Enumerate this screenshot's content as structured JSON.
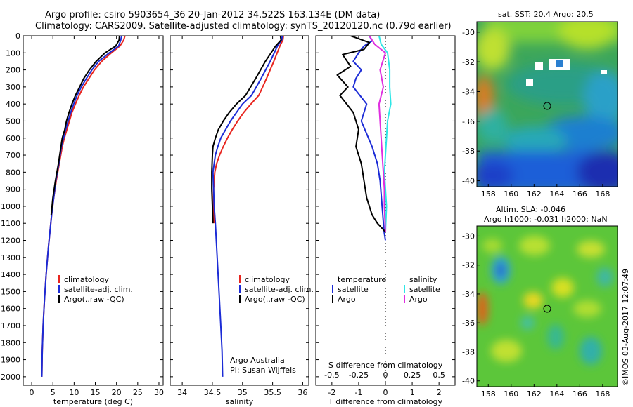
{
  "header": {
    "line1": "Argo profile: csiro 5903654_36 20-Jan-2012 34.522S 163.134E (DM data)",
    "line2": "Climatology: CARS2009. Satellite-adjusted climatology: synTS_20120120.nc (0.79d earlier)"
  },
  "colors": {
    "climatology": "#e8251f",
    "satellite": "#1b2bd6",
    "argo": "#000000",
    "sal_satellite": "#2ee6e6",
    "sal_argo": "#e02ee0"
  },
  "panels": {
    "credit_line1": "Argo Australia",
    "credit_line2": "PI: Susan Wijffels",
    "diff_top_label": "S difference from climatology",
    "imos_credit": "©IMOS 03-Aug-2017 12:07:49",
    "sst_title": "sat. SST: 20.4  Argo: 20.5",
    "sla_title1": "Altim. SLA: -0.046",
    "sla_title2": "Argo h1000: -0.031  h2000: NaN"
  },
  "legend_profiles": {
    "items": [
      "climatology",
      "satellite-adj. clim.",
      "Argo(..raw -QC)"
    ]
  },
  "legend_diff": {
    "temp_header": "temperature",
    "sal_header": "salinity",
    "temp_items": [
      "satellite",
      "Argo"
    ],
    "sal_items": [
      "satellite",
      "Argo"
    ]
  },
  "chart_data": [
    {
      "type": "line",
      "title": "",
      "xlabel": "temperature (deg C)",
      "ylabel": "",
      "xlim": [
        -2,
        31
      ],
      "ylim": [
        2050,
        0
      ],
      "xticks": [
        0,
        5,
        10,
        15,
        20,
        25,
        30
      ],
      "yticks": [
        0,
        100,
        200,
        300,
        400,
        500,
        600,
        700,
        800,
        900,
        1000,
        1100,
        1200,
        1300,
        1400,
        1500,
        1600,
        1700,
        1800,
        1900,
        2000
      ],
      "series": [
        {
          "name": "climatology",
          "color": "#e8251f",
          "x": [
            22.0,
            21.7,
            20.8,
            18.8,
            16.5,
            14.8,
            13.5,
            12.2,
            11.2,
            10.3,
            9.5,
            8.9,
            8.3,
            7.7,
            7.2,
            6.5,
            5.8,
            5.2,
            4.7,
            4.3,
            3.9,
            3.4,
            3.0,
            2.7,
            2.5,
            2.4
          ],
          "depth": [
            0,
            25,
            60,
            100,
            150,
            200,
            250,
            300,
            350,
            400,
            450,
            500,
            550,
            600,
            650,
            750,
            850,
            950,
            1050,
            1150,
            1250,
            1400,
            1550,
            1700,
            1850,
            2000
          ]
        },
        {
          "name": "satellite-adj. clim.",
          "color": "#1b2bd6",
          "x": [
            21.2,
            21.0,
            20.5,
            18.3,
            15.8,
            14.2,
            12.9,
            11.7,
            10.7,
            9.9,
            9.2,
            8.6,
            8.0,
            7.5,
            7.0,
            6.4,
            5.7,
            5.2,
            4.7,
            4.3,
            3.9,
            3.4,
            3.0,
            2.7,
            2.5,
            2.4
          ],
          "depth": [
            0,
            25,
            60,
            100,
            150,
            200,
            250,
            300,
            350,
            400,
            450,
            500,
            550,
            600,
            650,
            750,
            850,
            950,
            1050,
            1150,
            1250,
            1400,
            1550,
            1700,
            1850,
            2000
          ]
        },
        {
          "name": "Argo(..raw -QC)",
          "color": "#000000",
          "x": [
            20.7,
            20.6,
            19.8,
            17.3,
            15.2,
            13.6,
            12.3,
            11.3,
            10.3,
            9.5,
            8.8,
            8.2,
            7.8,
            7.2,
            6.9,
            6.3,
            5.6,
            5.0,
            4.6
          ],
          "depth": [
            0,
            25,
            60,
            100,
            150,
            200,
            250,
            300,
            350,
            400,
            450,
            500,
            550,
            600,
            650,
            750,
            850,
            950,
            1050
          ]
        }
      ]
    },
    {
      "type": "line",
      "title": "",
      "xlabel": "salinity",
      "ylabel": "",
      "xlim": [
        33.8,
        36.1
      ],
      "ylim": [
        2050,
        0
      ],
      "xticks": [
        34,
        34.5,
        35,
        35.5,
        36
      ],
      "series": [
        {
          "name": "climatology",
          "color": "#e8251f",
          "x": [
            35.68,
            35.67,
            35.62,
            35.52,
            35.4,
            35.27,
            35.14,
            35.02,
            34.92,
            34.83,
            34.75,
            34.68,
            34.62,
            34.57,
            34.54,
            34.52,
            34.52,
            34.53
          ],
          "depth": [
            0,
            25,
            60,
            150,
            250,
            350,
            400,
            450,
            500,
            550,
            600,
            650,
            700,
            750,
            800,
            900,
            1000,
            1100
          ]
        },
        {
          "name": "satellite-adj. clim.",
          "color": "#1b2bd6",
          "x": [
            35.66,
            35.65,
            35.58,
            35.46,
            35.31,
            35.15,
            35.0,
            34.9,
            34.8,
            34.72,
            34.64,
            34.59,
            34.55,
            34.53,
            34.51,
            34.52,
            34.53,
            34.55,
            34.58,
            34.61,
            34.64,
            34.66,
            34.67
          ],
          "depth": [
            0,
            25,
            60,
            150,
            250,
            350,
            400,
            450,
            500,
            550,
            600,
            650,
            700,
            750,
            800,
            900,
            1000,
            1100,
            1300,
            1500,
            1700,
            1850,
            2000
          ]
        },
        {
          "name": "Argo(..raw -QC)",
          "color": "#000000",
          "x": [
            35.63,
            35.64,
            35.55,
            35.38,
            35.22,
            35.05,
            34.9,
            34.78,
            34.68,
            34.6,
            34.55,
            34.51,
            34.5,
            34.49,
            34.49,
            34.5,
            34.51
          ],
          "depth": [
            0,
            25,
            60,
            150,
            250,
            350,
            400,
            450,
            500,
            550,
            600,
            650,
            700,
            800,
            900,
            1000,
            1100
          ]
        }
      ]
    },
    {
      "type": "line",
      "title": "S difference from climatology",
      "xlabel": "T difference from climatology",
      "ylabel": "",
      "xlim": [
        -2.6,
        2.6
      ],
      "ylim": [
        2050,
        0
      ],
      "xticks": [
        -2,
        -1,
        0,
        1,
        2
      ],
      "xticks_top": [
        -0.5,
        -0.25,
        0,
        0.25,
        0.5
      ],
      "xticks_top_labels": [
        "-0.5",
        "-0.25",
        "0",
        "0.25",
        "0.5"
      ],
      "series": [
        {
          "name": "temperature satellite",
          "color": "#1b2bd6",
          "x": [
            -0.6,
            -0.5,
            -0.8,
            -1.0,
            -1.2,
            -0.9,
            -1.1,
            -1.2,
            -0.7,
            -0.9,
            -0.5,
            -0.3,
            -0.2,
            -0.15,
            -0.1,
            -0.05,
            0.0
          ],
          "depth": [
            0,
            30,
            60,
            100,
            150,
            200,
            250,
            300,
            400,
            500,
            650,
            750,
            850,
            950,
            1050,
            1150,
            1200
          ]
        },
        {
          "name": "temperature Argo",
          "color": "#000000",
          "x": [
            -1.3,
            -0.6,
            -0.8,
            -1.6,
            -1.3,
            -1.8,
            -1.4,
            -1.7,
            -1.2,
            -1.0,
            -1.1,
            -0.9,
            -0.8,
            -0.7,
            -0.5,
            -0.3,
            0.0
          ],
          "depth": [
            0,
            40,
            80,
            110,
            180,
            230,
            300,
            350,
            450,
            550,
            650,
            750,
            850,
            950,
            1050,
            1100,
            1150
          ]
        },
        {
          "name": "salinity satellite",
          "color": "#2ee6e6",
          "x": [
            -0.06,
            -0.04,
            0.02,
            0.04,
            0.04,
            0.05,
            0.02,
            0.01,
            0.0,
            -0.01,
            0.0,
            0.01,
            0.0
          ],
          "depth": [
            0,
            50,
            100,
            200,
            300,
            400,
            500,
            600,
            700,
            800,
            900,
            1000,
            1150
          ]
        },
        {
          "name": "salinity Argo",
          "color": "#e02ee0",
          "x": [
            -0.15,
            -0.1,
            0.0,
            -0.05,
            -0.02,
            -0.06,
            -0.05,
            -0.04,
            -0.03,
            -0.02,
            -0.01,
            -0.01,
            0.0
          ],
          "depth": [
            0,
            50,
            100,
            200,
            300,
            400,
            500,
            600,
            700,
            800,
            900,
            1000,
            1150
          ]
        }
      ]
    },
    {
      "type": "heatmap",
      "title": "sat. SST: 20.4  Argo: 20.5",
      "xlim": [
        157,
        169.3
      ],
      "ylim": [
        -40.4,
        -29.3
      ],
      "xticks": [
        158,
        160,
        162,
        164,
        166,
        168
      ],
      "yticks": [
        -30,
        -32,
        -34,
        -36,
        -38,
        -40
      ],
      "marker": {
        "lon": 163.134,
        "lat": -34.522
      }
    },
    {
      "type": "heatmap",
      "title": "Altim. SLA: -0.046 / Argo h1000: -0.031  h2000: NaN",
      "xlim": [
        157,
        169.3
      ],
      "ylim": [
        -40.4,
        -29.3
      ],
      "xticks": [
        158,
        160,
        162,
        164,
        166,
        168
      ],
      "yticks": [
        -30,
        -32,
        -34,
        -36,
        -38,
        -40
      ],
      "marker": {
        "lon": 163.134,
        "lat": -34.522
      }
    }
  ]
}
